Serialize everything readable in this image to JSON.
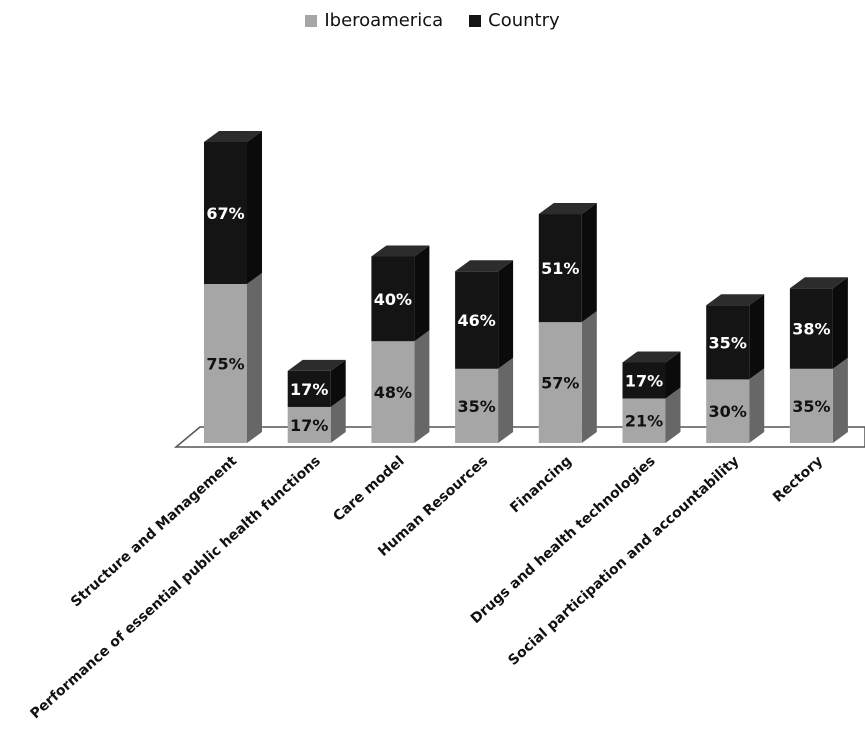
{
  "colors": {
    "iberoamerica": "#a6a6a6",
    "country": "#141414",
    "label_iberoamerica": "#111111",
    "label_country": "#ffffff"
  },
  "chart_data": {
    "type": "bar",
    "stacked": true,
    "three_d": true,
    "title": "",
    "xlabel": "",
    "ylabel": "",
    "legend_position": "top-center",
    "grid": false,
    "categories": [
      "Structure and Management",
      "Performance of essential public health functions",
      "Care model",
      "Human Resources",
      "Financing",
      "Drugs and health technologies",
      "Social participation and accountability",
      "Rectory"
    ],
    "series": [
      {
        "name": "Iberoamerica",
        "values": [
          75,
          17,
          48,
          35,
          57,
          21,
          30,
          35
        ],
        "labels": [
          "75%",
          "17%",
          "48%",
          "35%",
          "57%",
          "21%",
          "30%",
          "35%"
        ]
      },
      {
        "name": "Country",
        "values": [
          67,
          17,
          40,
          46,
          51,
          17,
          35,
          38
        ],
        "labels": [
          "67%",
          "17%",
          "40%",
          "46%",
          "51%",
          "17%",
          "35%",
          "38%"
        ]
      }
    ]
  }
}
